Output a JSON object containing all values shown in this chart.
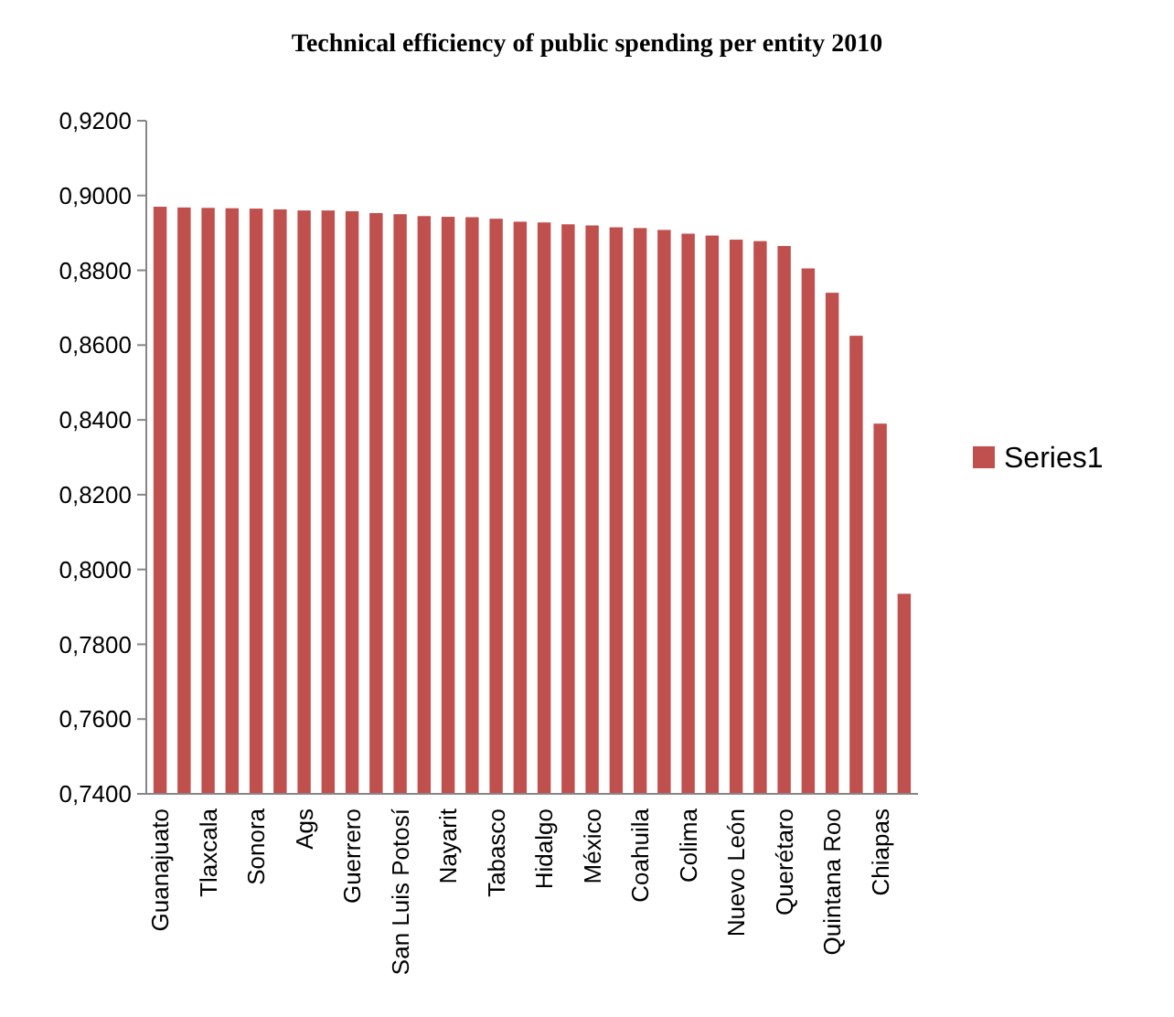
{
  "chart_data": {
    "type": "bar",
    "title": "Technical efficiency of public spending per entity 2010",
    "categories": [
      "Guanajuato",
      null,
      "Tlaxcala",
      null,
      "Sonora",
      null,
      "Ags",
      null,
      "Guerrero",
      null,
      "San Luis Potosí",
      null,
      "Nayarit",
      null,
      "Tabasco",
      null,
      "Hidalgo",
      null,
      "México",
      null,
      "Coahuila",
      null,
      "Colima",
      null,
      "Nuevo León",
      null,
      "Querétaro",
      null,
      "Quintana Roo",
      null,
      "Chiapas",
      null
    ],
    "series": [
      {
        "name": "Series1",
        "color": "#c0504d",
        "values": [
          0.897,
          0.8968,
          0.8967,
          0.8966,
          0.8965,
          0.8963,
          0.896,
          0.896,
          0.8958,
          0.8953,
          0.895,
          0.8945,
          0.8943,
          0.8942,
          0.8938,
          0.893,
          0.8928,
          0.8923,
          0.892,
          0.8915,
          0.8913,
          0.8908,
          0.8898,
          0.8893,
          0.8882,
          0.8878,
          0.8865,
          0.8805,
          0.874,
          0.8625,
          0.839,
          0.7935
        ]
      }
    ],
    "ylim": [
      0.74,
      0.92
    ],
    "yticks": [
      {
        "value": 0.74,
        "label": "0,7400"
      },
      {
        "value": 0.76,
        "label": "0,7600"
      },
      {
        "value": 0.78,
        "label": "0,7800"
      },
      {
        "value": 0.8,
        "label": "0,8000"
      },
      {
        "value": 0.82,
        "label": "0,8200"
      },
      {
        "value": 0.84,
        "label": "0,8400"
      },
      {
        "value": 0.86,
        "label": "0,8600"
      },
      {
        "value": 0.88,
        "label": "0,8800"
      },
      {
        "value": 0.9,
        "label": "0,9000"
      },
      {
        "value": 0.92,
        "label": "0,9200"
      }
    ],
    "legend": "right"
  }
}
